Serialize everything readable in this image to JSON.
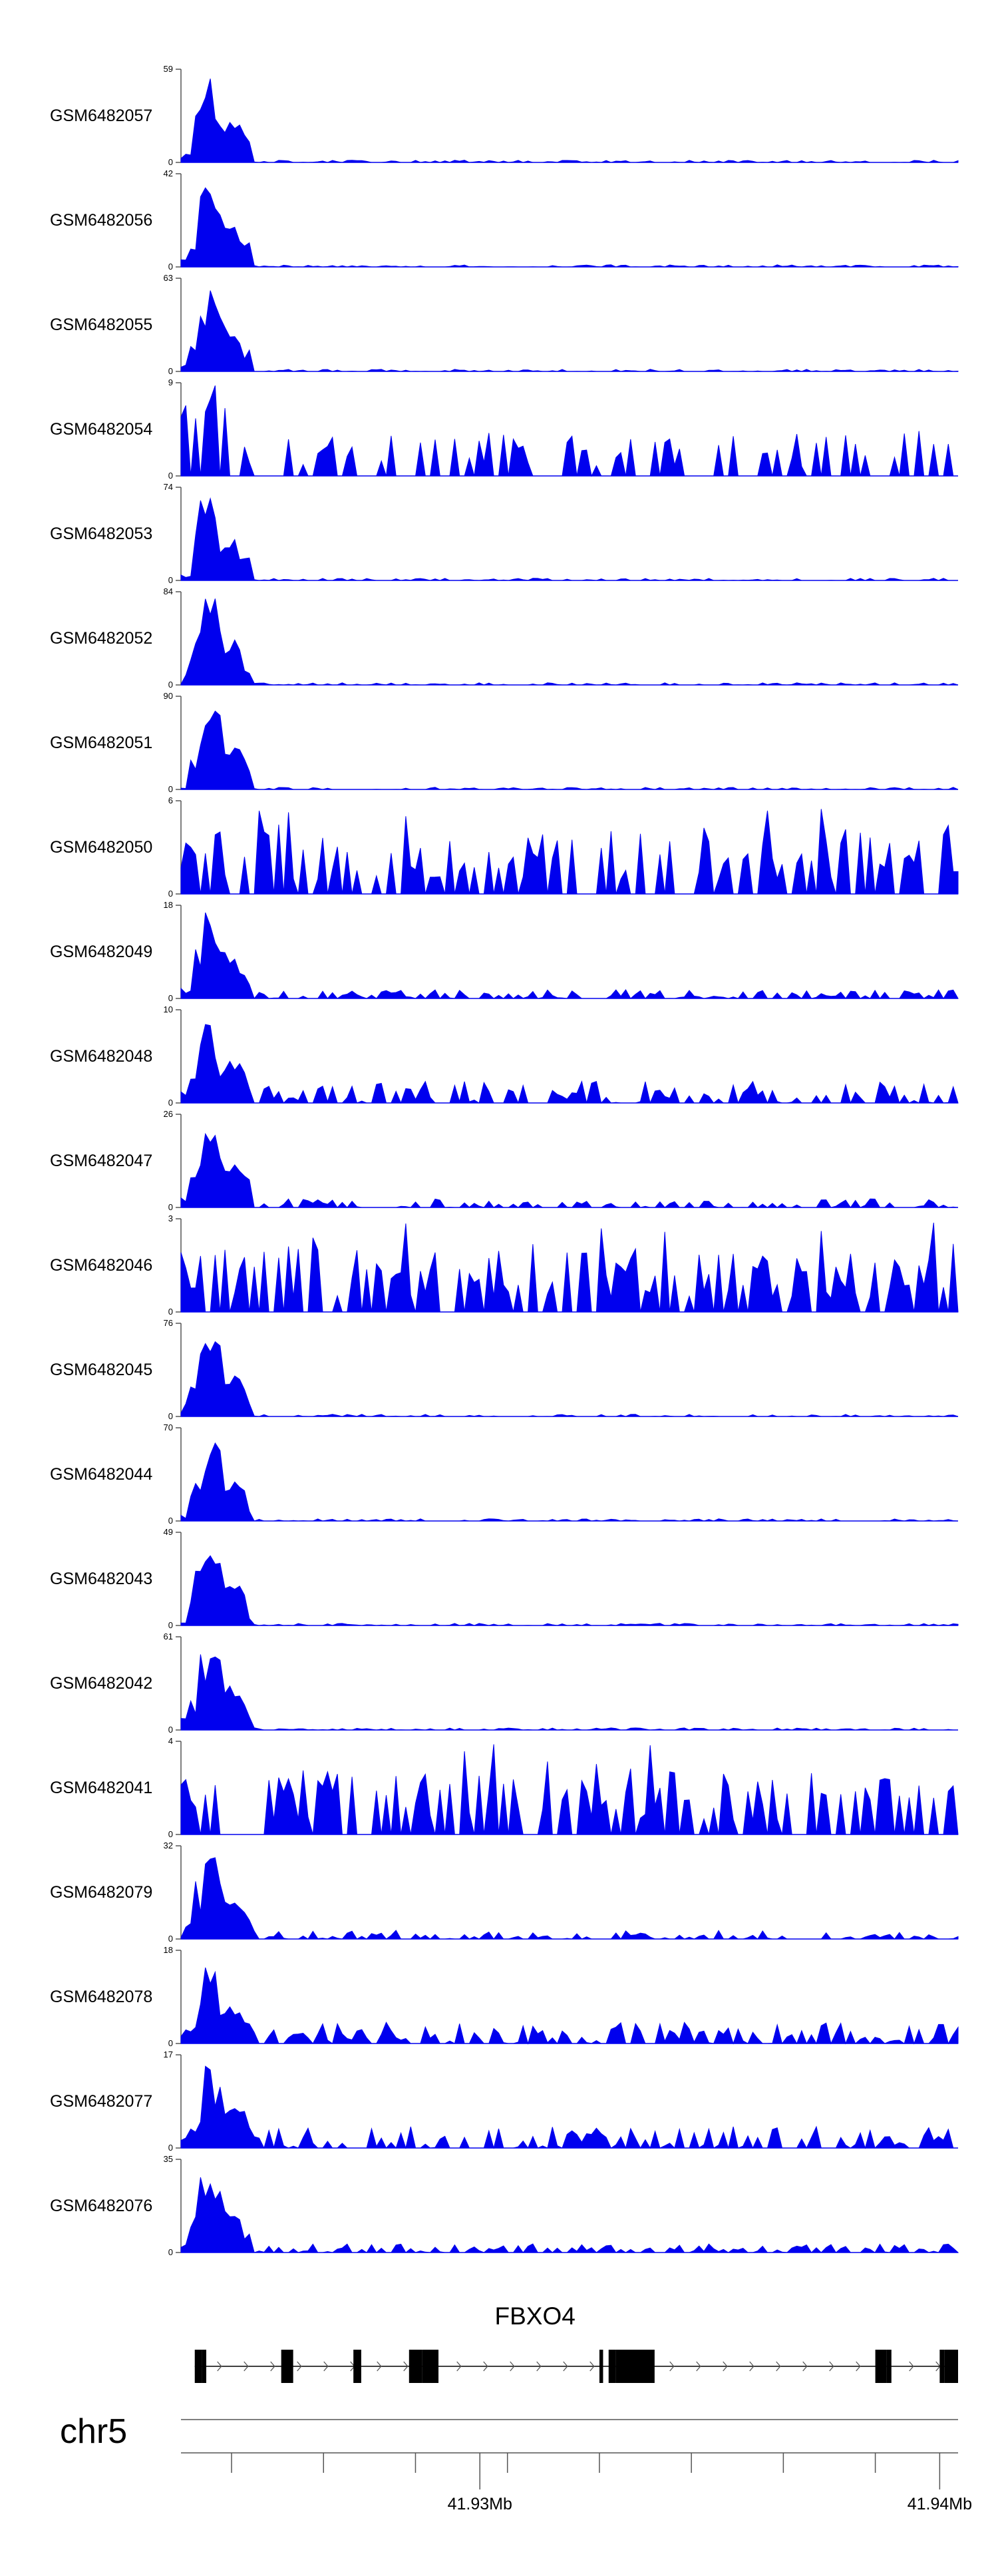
{
  "colors": {
    "signal": "#0000ee",
    "axis": "#555555",
    "gene": "#000000",
    "intron_arrow": "#555555"
  },
  "chart_data": {
    "type": "area",
    "xlim_bp": [
      41923500,
      41940400
    ],
    "tracks": [
      {
        "name": "GSM6482057",
        "ymax": "59",
        "ymin": "0",
        "profile": "peak_high",
        "seed": 57
      },
      {
        "name": "GSM6482056",
        "ymax": "42",
        "ymin": "0",
        "profile": "peak_high",
        "seed": 56
      },
      {
        "name": "GSM6482055",
        "ymax": "63",
        "ymin": "0",
        "profile": "peak_high",
        "seed": 55
      },
      {
        "name": "GSM6482054",
        "ymax": "9",
        "ymin": "0",
        "profile": "noisy_sparse",
        "seed": 54
      },
      {
        "name": "GSM6482053",
        "ymax": "74",
        "ymin": "0",
        "profile": "peak_high",
        "seed": 53
      },
      {
        "name": "GSM6482052",
        "ymax": "84",
        "ymin": "0",
        "profile": "peak_high",
        "seed": 52
      },
      {
        "name": "GSM6482051",
        "ymax": "90",
        "ymin": "0",
        "profile": "peak_high",
        "seed": 51
      },
      {
        "name": "GSM6482050",
        "ymax": "6",
        "ymin": "0",
        "profile": "noisy",
        "seed": 50
      },
      {
        "name": "GSM6482049",
        "ymax": "18",
        "ymin": "0",
        "profile": "peak_mid",
        "seed": 49
      },
      {
        "name": "GSM6482048",
        "ymax": "10",
        "ymin": "0",
        "profile": "peak_low",
        "seed": 48
      },
      {
        "name": "GSM6482047",
        "ymax": "26",
        "ymin": "0",
        "profile": "peak_mid",
        "seed": 47
      },
      {
        "name": "GSM6482046",
        "ymax": "3",
        "ymin": "0",
        "profile": "noisy",
        "seed": 46
      },
      {
        "name": "GSM6482045",
        "ymax": "76",
        "ymin": "0",
        "profile": "peak_high",
        "seed": 45
      },
      {
        "name": "GSM6482044",
        "ymax": "70",
        "ymin": "0",
        "profile": "peak_high",
        "seed": 44
      },
      {
        "name": "GSM6482043",
        "ymax": "49",
        "ymin": "0",
        "profile": "peak_high",
        "seed": 43
      },
      {
        "name": "GSM6482042",
        "ymax": "61",
        "ymin": "0",
        "profile": "peak_high",
        "seed": 42
      },
      {
        "name": "GSM6482041",
        "ymax": "4",
        "ymin": "0",
        "profile": "noisy",
        "seed": 41
      },
      {
        "name": "GSM6482079",
        "ymax": "32",
        "ymin": "0",
        "profile": "peak_mid",
        "seed": 79
      },
      {
        "name": "GSM6482078",
        "ymax": "18",
        "ymin": "0",
        "profile": "peak_low",
        "seed": 78
      },
      {
        "name": "GSM6482077",
        "ymax": "17",
        "ymin": "0",
        "profile": "peak_low",
        "seed": 77
      },
      {
        "name": "GSM6482076",
        "ymax": "35",
        "ymin": "0",
        "profile": "peak_mid",
        "seed": 76
      }
    ],
    "gene": {
      "name": "FBXO4",
      "strand": "+",
      "span_bp": [
        41923800,
        41940400
      ],
      "exons_bp": [
        [
          41923800,
          41923950
        ],
        [
          41923950,
          41924050
        ],
        [
          41925680,
          41925940
        ],
        [
          41927250,
          41927320
        ],
        [
          41927320,
          41927420
        ],
        [
          41928460,
          41928750
        ],
        [
          41928750,
          41929100
        ],
        [
          41932600,
          41932680
        ],
        [
          41932800,
          41932950
        ],
        [
          41932950,
          41933800
        ],
        [
          41938600,
          41938850
        ],
        [
          41938850,
          41938950
        ],
        [
          41940000,
          41940100
        ],
        [
          41940100,
          41940400
        ]
      ],
      "thick_exons_bp": [
        [
          41923950,
          41924050
        ],
        [
          41925680,
          41925940
        ],
        [
          41927320,
          41927420
        ],
        [
          41928460,
          41928750
        ],
        [
          41932600,
          41932680
        ],
        [
          41932800,
          41932950
        ],
        [
          41938600,
          41938850
        ],
        [
          41940000,
          41940100
        ]
      ]
    },
    "chromosome": "chr5",
    "axis_ticks_bp": [
      41924600,
      41926600,
      41928600,
      41930600,
      41932600,
      41934600,
      41936600,
      41938600
    ],
    "axis_labels": [
      {
        "bp": 41930000,
        "label": "41.93Mb"
      },
      {
        "bp": 41940000,
        "label": "41.94Mb"
      }
    ]
  }
}
